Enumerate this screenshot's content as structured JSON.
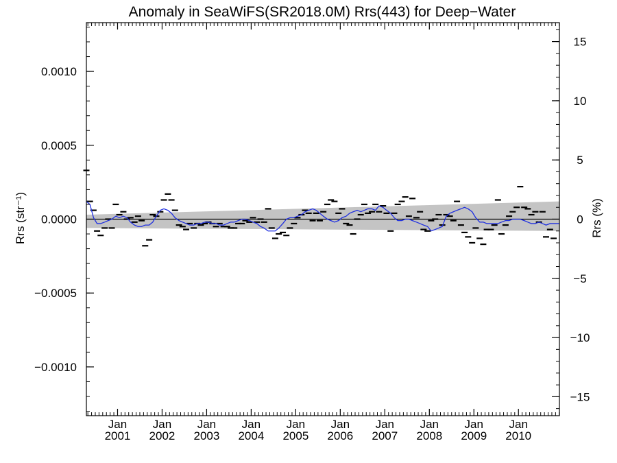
{
  "chart_data": {
    "type": "line",
    "title": "Anomaly in SeaWiFS(SR2018.0M) Rrs(443) for Deep−Water",
    "ylabel_left": "Rrs (str⁻¹)",
    "ylabel_right": "Rrs (%)",
    "xlabel": "",
    "x_range": [
      2000.3,
      2010.92
    ],
    "ylim": [
      -0.00133,
      0.00133
    ],
    "right_ylim": [
      -16.6,
      16.6
    ],
    "left_ticks": [
      {
        "value": 0.001,
        "label": "0.0010"
      },
      {
        "value": 0.0005,
        "label": "0.0005"
      },
      {
        "value": 0.0,
        "label": "0.0000"
      },
      {
        "value": -0.0005,
        "label": "−0.0005"
      },
      {
        "value": -0.001,
        "label": "−0.0010"
      }
    ],
    "right_ticks": [
      {
        "value": 15,
        "label": "15"
      },
      {
        "value": 10,
        "label": "10"
      },
      {
        "value": 5,
        "label": "5"
      },
      {
        "value": 0,
        "label": "0"
      },
      {
        "value": -5,
        "label": "−5"
      },
      {
        "value": -10,
        "label": "−10"
      },
      {
        "value": -15,
        "label": "−15"
      }
    ],
    "x_ticks": [
      {
        "value": 2001.0,
        "month": "Jan",
        "year": "2001"
      },
      {
        "value": 2002.0,
        "month": "Jan",
        "year": "2002"
      },
      {
        "value": 2003.0,
        "month": "Jan",
        "year": "2003"
      },
      {
        "value": 2004.0,
        "month": "Jan",
        "year": "2004"
      },
      {
        "value": 2005.0,
        "month": "Jan",
        "year": "2005"
      },
      {
        "value": 2006.0,
        "month": "Jan",
        "year": "2006"
      },
      {
        "value": 2007.0,
        "month": "Jan",
        "year": "2007"
      },
      {
        "value": 2008.0,
        "month": "Jan",
        "year": "2008"
      },
      {
        "value": 2009.0,
        "month": "Jan",
        "year": "2009"
      },
      {
        "value": 2010.0,
        "month": "Jan",
        "year": "2010"
      }
    ],
    "band": {
      "x": [
        2000.3,
        2010.92
      ],
      "upper": [
        3e-05,
        0.00012
      ],
      "lower": [
        -6e-05,
        -8e-05
      ]
    },
    "monthly_points": [
      [
        2000.3,
        0.00033
      ],
      [
        2000.38,
        0.00012
      ],
      [
        2000.46,
        6e-05
      ],
      [
        2000.54,
        -8e-05
      ],
      [
        2000.62,
        -0.00011
      ],
      [
        2000.71,
        -6e-05
      ],
      [
        2000.79,
        0.0
      ],
      [
        2000.87,
        -6e-05
      ],
      [
        2000.96,
        0.0001
      ],
      [
        2001.04,
        3e-05
      ],
      [
        2001.13,
        5e-05
      ],
      [
        2001.21,
        0.0
      ],
      [
        2001.29,
        1e-05
      ],
      [
        2001.38,
        -2e-05
      ],
      [
        2001.46,
        2e-05
      ],
      [
        2001.54,
        -1e-05
      ],
      [
        2001.62,
        -0.00018
      ],
      [
        2001.71,
        -0.00014
      ],
      [
        2001.79,
        3e-05
      ],
      [
        2001.87,
        2e-05
      ],
      [
        2001.96,
        5e-05
      ],
      [
        2002.04,
        0.00013
      ],
      [
        2002.13,
        0.00017
      ],
      [
        2002.21,
        0.00013
      ],
      [
        2002.29,
        6e-05
      ],
      [
        2002.38,
        -4e-05
      ],
      [
        2002.46,
        -5e-05
      ],
      [
        2002.54,
        -7e-05
      ],
      [
        2002.62,
        -3e-05
      ],
      [
        2002.71,
        -6e-05
      ],
      [
        2002.79,
        -3e-05
      ],
      [
        2002.87,
        -4e-05
      ],
      [
        2002.96,
        -3e-05
      ],
      [
        2003.04,
        -2e-05
      ],
      [
        2003.13,
        -3e-05
      ],
      [
        2003.21,
        -5e-05
      ],
      [
        2003.29,
        -3e-05
      ],
      [
        2003.38,
        -5e-05
      ],
      [
        2003.46,
        -5e-05
      ],
      [
        2003.54,
        -6e-05
      ],
      [
        2003.62,
        -6e-05
      ],
      [
        2003.71,
        -3e-05
      ],
      [
        2003.79,
        -3e-05
      ],
      [
        2003.87,
        -1e-05
      ],
      [
        2003.96,
        -2e-05
      ],
      [
        2004.04,
        1e-05
      ],
      [
        2004.13,
        -2e-05
      ],
      [
        2004.21,
        0.0
      ],
      [
        2004.29,
        -2e-05
      ],
      [
        2004.38,
        7e-05
      ],
      [
        2004.46,
        -6e-05
      ],
      [
        2004.54,
        -0.00013
      ],
      [
        2004.62,
        -0.0001
      ],
      [
        2004.71,
        -9e-05
      ],
      [
        2004.79,
        -0.00011
      ],
      [
        2004.87,
        -6e-05
      ],
      [
        2004.96,
        -3e-05
      ],
      [
        2005.04,
        1e-05
      ],
      [
        2005.13,
        3e-05
      ],
      [
        2005.21,
        6e-05
      ],
      [
        2005.29,
        4e-05
      ],
      [
        2005.38,
        -1e-05
      ],
      [
        2005.46,
        4e-05
      ],
      [
        2005.54,
        -1e-05
      ],
      [
        2005.62,
        5e-05
      ],
      [
        2005.71,
        0.0001
      ],
      [
        2005.79,
        0.00013
      ],
      [
        2005.87,
        0.00012
      ],
      [
        2005.96,
        4e-05
      ],
      [
        2006.04,
        7e-05
      ],
      [
        2006.13,
        -3e-05
      ],
      [
        2006.21,
        -4e-05
      ],
      [
        2006.29,
        -0.0001
      ],
      [
        2006.38,
        0.0
      ],
      [
        2006.46,
        3e-05
      ],
      [
        2006.54,
        0.0001
      ],
      [
        2006.62,
        4e-05
      ],
      [
        2006.71,
        5e-05
      ],
      [
        2006.79,
        0.0001
      ],
      [
        2006.87,
        5e-05
      ],
      [
        2006.96,
        9e-05
      ],
      [
        2007.04,
        4e-05
      ],
      [
        2007.13,
        -8e-05
      ],
      [
        2007.21,
        4e-05
      ],
      [
        2007.29,
        0.0001
      ],
      [
        2007.38,
        0.00012
      ],
      [
        2007.46,
        0.00015
      ],
      [
        2007.54,
        2e-05
      ],
      [
        2007.62,
        0.00014
      ],
      [
        2007.71,
        1e-05
      ],
      [
        2007.79,
        5e-05
      ],
      [
        2007.87,
        -7e-05
      ],
      [
        2007.96,
        -8e-05
      ],
      [
        2008.04,
        -1e-05
      ],
      [
        2008.13,
        0.0
      ],
      [
        2008.21,
        3e-05
      ],
      [
        2008.29,
        -4e-05
      ],
      [
        2008.38,
        3e-05
      ],
      [
        2008.46,
        2e-05
      ],
      [
        2008.54,
        -1e-05
      ],
      [
        2008.62,
        0.00012
      ],
      [
        2008.71,
        -4e-05
      ],
      [
        2008.79,
        -9e-05
      ],
      [
        2008.87,
        -0.00012
      ],
      [
        2008.96,
        -0.00016
      ],
      [
        2009.04,
        -6e-05
      ],
      [
        2009.13,
        -0.00013
      ],
      [
        2009.21,
        -0.00017
      ],
      [
        2009.29,
        -7e-05
      ],
      [
        2009.38,
        -7e-05
      ],
      [
        2009.46,
        -4e-05
      ],
      [
        2009.54,
        0.00013
      ],
      [
        2009.62,
        -0.0001
      ],
      [
        2009.71,
        -4e-05
      ],
      [
        2009.79,
        2e-05
      ],
      [
        2009.87,
        5e-05
      ],
      [
        2009.96,
        8e-05
      ],
      [
        2010.04,
        0.00022
      ],
      [
        2010.13,
        8e-05
      ],
      [
        2010.21,
        7e-05
      ],
      [
        2010.29,
        3e-05
      ],
      [
        2010.38,
        5e-05
      ],
      [
        2010.46,
        -2e-05
      ],
      [
        2010.54,
        5e-05
      ],
      [
        2010.62,
        -0.00012
      ],
      [
        2010.71,
        -7e-05
      ],
      [
        2010.79,
        -0.00013
      ]
    ],
    "smoothed": {
      "x": [
        2000.3,
        2000.38,
        2000.46,
        2000.54,
        2000.62,
        2000.71,
        2000.79,
        2000.87,
        2000.96,
        2001.04,
        2001.13,
        2001.21,
        2001.29,
        2001.38,
        2001.46,
        2001.54,
        2001.62,
        2001.71,
        2001.79,
        2001.87,
        2001.96,
        2002.04,
        2002.13,
        2002.21,
        2002.29,
        2002.38,
        2002.46,
        2002.54,
        2002.62,
        2002.71,
        2002.79,
        2002.87,
        2002.96,
        2003.04,
        2003.13,
        2003.21,
        2003.29,
        2003.38,
        2003.46,
        2003.54,
        2003.62,
        2003.71,
        2003.79,
        2003.87,
        2003.96,
        2004.04,
        2004.13,
        2004.21,
        2004.29,
        2004.38,
        2004.46,
        2004.54,
        2004.62,
        2004.71,
        2004.79,
        2004.87,
        2004.96,
        2005.04,
        2005.13,
        2005.21,
        2005.29,
        2005.38,
        2005.46,
        2005.54,
        2005.62,
        2005.71,
        2005.79,
        2005.87,
        2005.96,
        2006.04,
        2006.13,
        2006.21,
        2006.29,
        2006.38,
        2006.46,
        2006.54,
        2006.62,
        2006.71,
        2006.79,
        2006.87,
        2006.96,
        2007.04,
        2007.13,
        2007.21,
        2007.29,
        2007.38,
        2007.46,
        2007.54,
        2007.62,
        2007.71,
        2007.79,
        2007.87,
        2007.96,
        2008.04,
        2008.13,
        2008.21,
        2008.29,
        2008.38,
        2008.46,
        2008.54,
        2008.62,
        2008.71,
        2008.79,
        2008.87,
        2008.96,
        2009.04,
        2009.13,
        2009.21,
        2009.29,
        2009.38,
        2009.46,
        2009.54,
        2009.62,
        2009.71,
        2009.79,
        2009.87,
        2009.96,
        2010.04,
        2010.13,
        2010.21,
        2010.29,
        2010.38,
        2010.46,
        2010.54,
        2010.62,
        2010.71,
        2010.79,
        2010.87,
        2010.92
      ],
      "y": [
        0.00012,
        0.0001,
        1e-05,
        -3e-05,
        -3e-05,
        -2e-05,
        -1e-05,
        0.0,
        2e-05,
        1e-05,
        2e-05,
        1e-05,
        -2e-05,
        -4e-05,
        -5e-05,
        -5e-05,
        -4e-05,
        -4e-05,
        -2e-05,
        2e-05,
        6e-05,
        7e-05,
        6e-05,
        4e-05,
        1e-05,
        -1e-05,
        -2e-05,
        -3e-05,
        -4e-05,
        -4e-05,
        -3e-05,
        -3e-05,
        -2e-05,
        -2e-05,
        -3e-05,
        -3e-05,
        -4e-05,
        -4e-05,
        -3e-05,
        -2e-05,
        -2e-05,
        -1e-05,
        0.0,
        0.0,
        -1e-05,
        -2e-05,
        -3e-05,
        -5e-05,
        -6e-05,
        -8e-05,
        -8e-05,
        -8e-05,
        -6e-05,
        -3e-05,
        0.0,
        1e-05,
        1e-05,
        2e-05,
        3e-05,
        5e-05,
        6e-05,
        7e-05,
        6e-05,
        4e-05,
        2e-05,
        0.0,
        -1e-05,
        -2e-05,
        -1e-05,
        1e-05,
        2e-05,
        4e-05,
        5e-05,
        6e-05,
        5e-05,
        6e-05,
        7e-05,
        7e-05,
        6e-05,
        9e-05,
        8e-05,
        6e-05,
        4e-05,
        1e-05,
        -1e-05,
        -1e-05,
        0.0,
        0.0,
        -1e-05,
        -2e-05,
        -3e-05,
        -4e-05,
        -5e-05,
        -8e-05,
        -7e-05,
        -6e-05,
        -5e-05,
        2e-05,
        4e-05,
        5e-05,
        6e-05,
        7e-05,
        8e-05,
        7e-05,
        5e-05,
        1e-05,
        -2e-05,
        -2e-05,
        -3e-05,
        -3e-05,
        -3e-05,
        -3e-05,
        -2e-05,
        -1e-05,
        -1e-05,
        0.0,
        0.0,
        0.0,
        -1e-05,
        -2e-05,
        -3e-05,
        -3e-05,
        -2e-05,
        -3e-05,
        -4e-05,
        -3e-05,
        -3e-05,
        -3e-05,
        -3e-05
      ]
    },
    "colors": {
      "band": "#c4c4c4",
      "smoothed_line": "#1f2fe0",
      "zero_line": "#000000",
      "points": "#000000"
    },
    "grid": false
  }
}
